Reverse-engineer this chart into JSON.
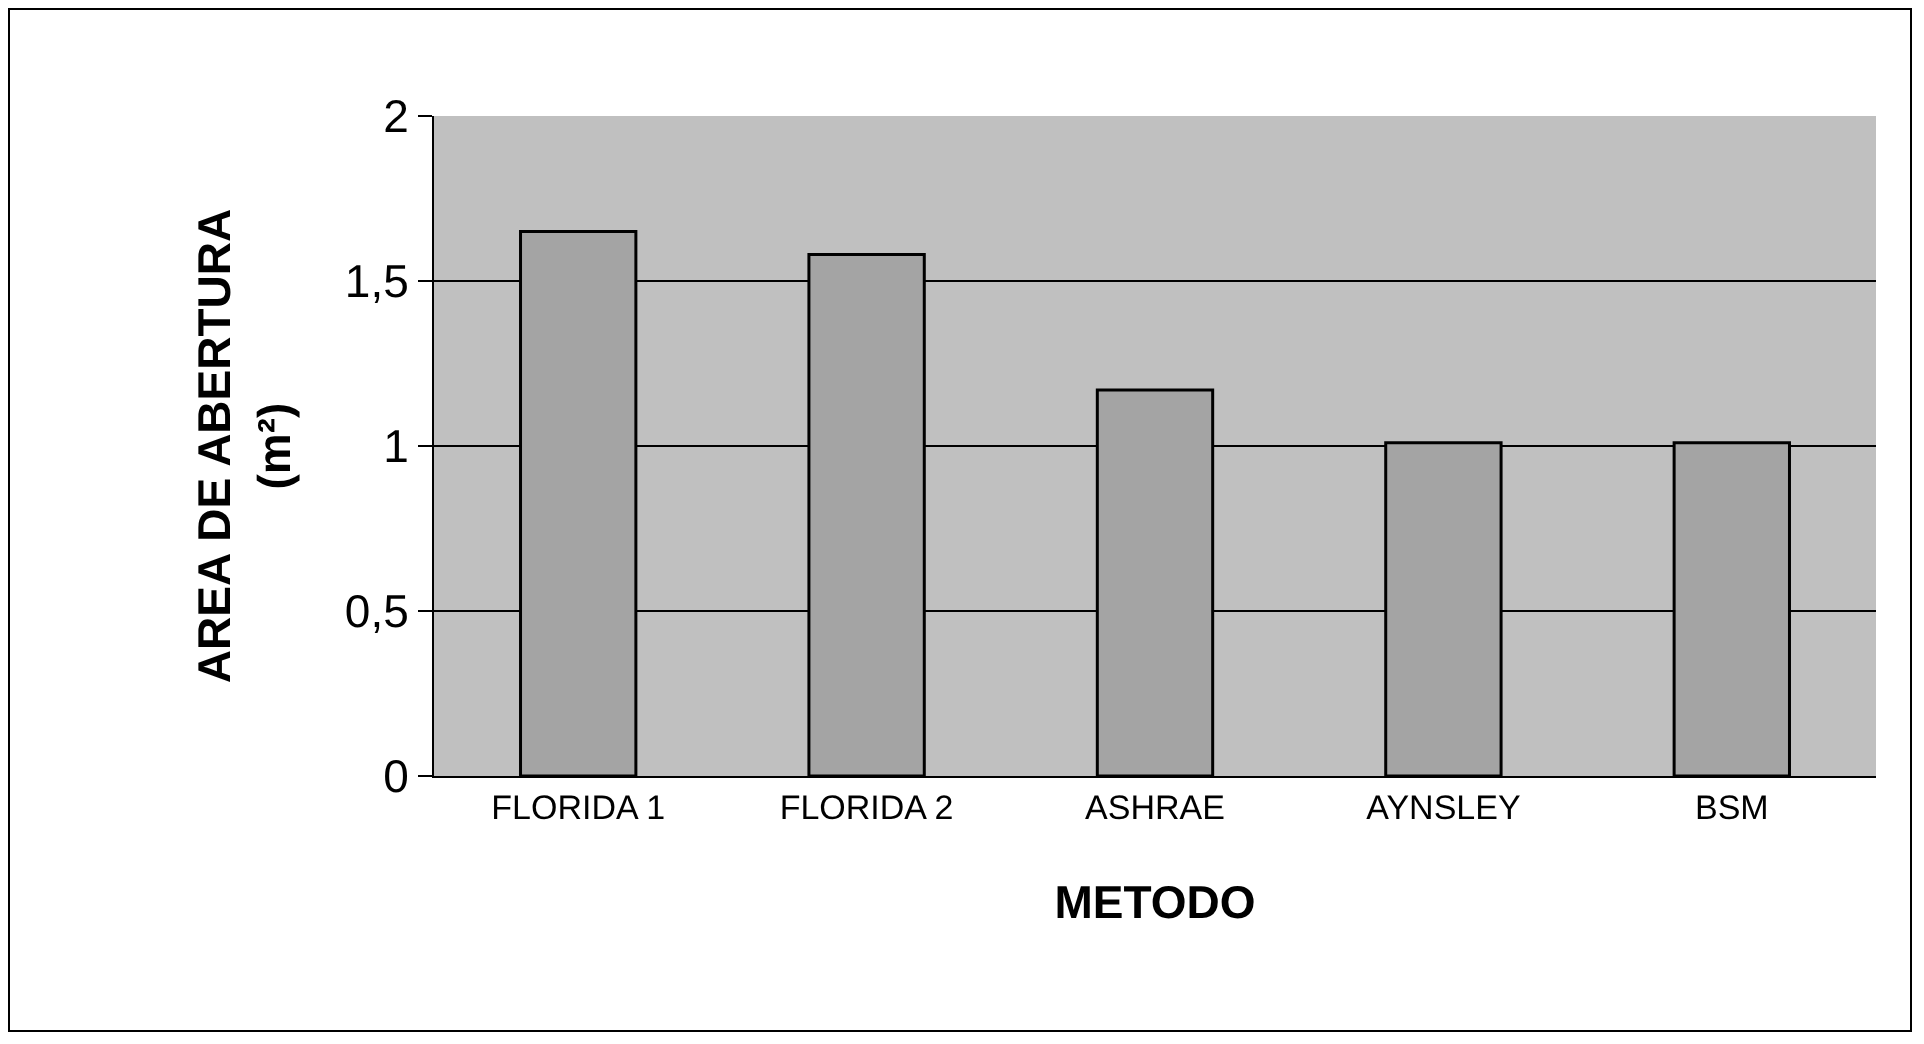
{
  "chart_data": {
    "type": "bar",
    "xlabel": "METODO",
    "ylabel": "AREA DE ABERTURA\n(m²)",
    "categories": [
      "FLORIDA 1",
      "FLORIDA 2",
      "ASHRAE",
      "AYNSLEY",
      "BSM"
    ],
    "values": [
      1.65,
      1.58,
      1.17,
      1.01,
      1.01
    ],
    "color": "#a4a4a4",
    "ylim": [
      0,
      2
    ],
    "yticks": [
      0,
      {
        "value": 0.5,
        "label": "0,5"
      },
      1,
      {
        "value": 1.5,
        "label": "1,5"
      },
      2
    ],
    "grid": "y",
    "legend": false
  }
}
